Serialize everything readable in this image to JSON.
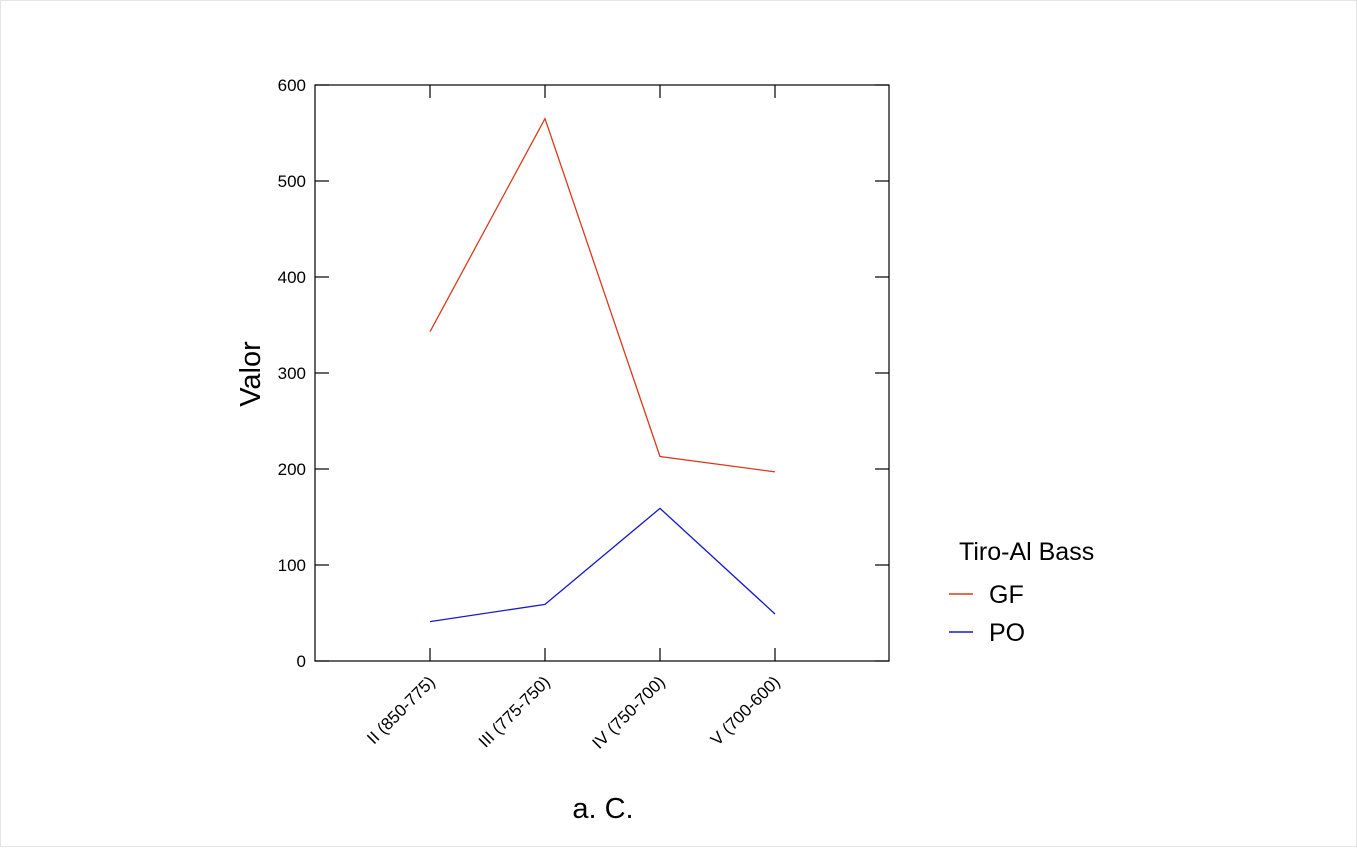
{
  "chart_data": {
    "type": "line",
    "title": "",
    "xlabel": "a. C.",
    "ylabel": "Valor",
    "categories": [
      "II (850-775)",
      "III (775-750)",
      "IV (750-700)",
      "V (700-600)"
    ],
    "ylim": [
      0,
      600
    ],
    "yticks": [
      0,
      100,
      200,
      300,
      400,
      500,
      600
    ],
    "grid": false,
    "legend": {
      "title": "Tiro-Al Bass",
      "placement": "right"
    },
    "series": [
      {
        "name": "GF",
        "color": "#d83b1c",
        "values": [
          343,
          565,
          213,
          197
        ]
      },
      {
        "name": "PO",
        "color": "#1a1ac8",
        "values": [
          41,
          59,
          159,
          49
        ]
      }
    ]
  }
}
